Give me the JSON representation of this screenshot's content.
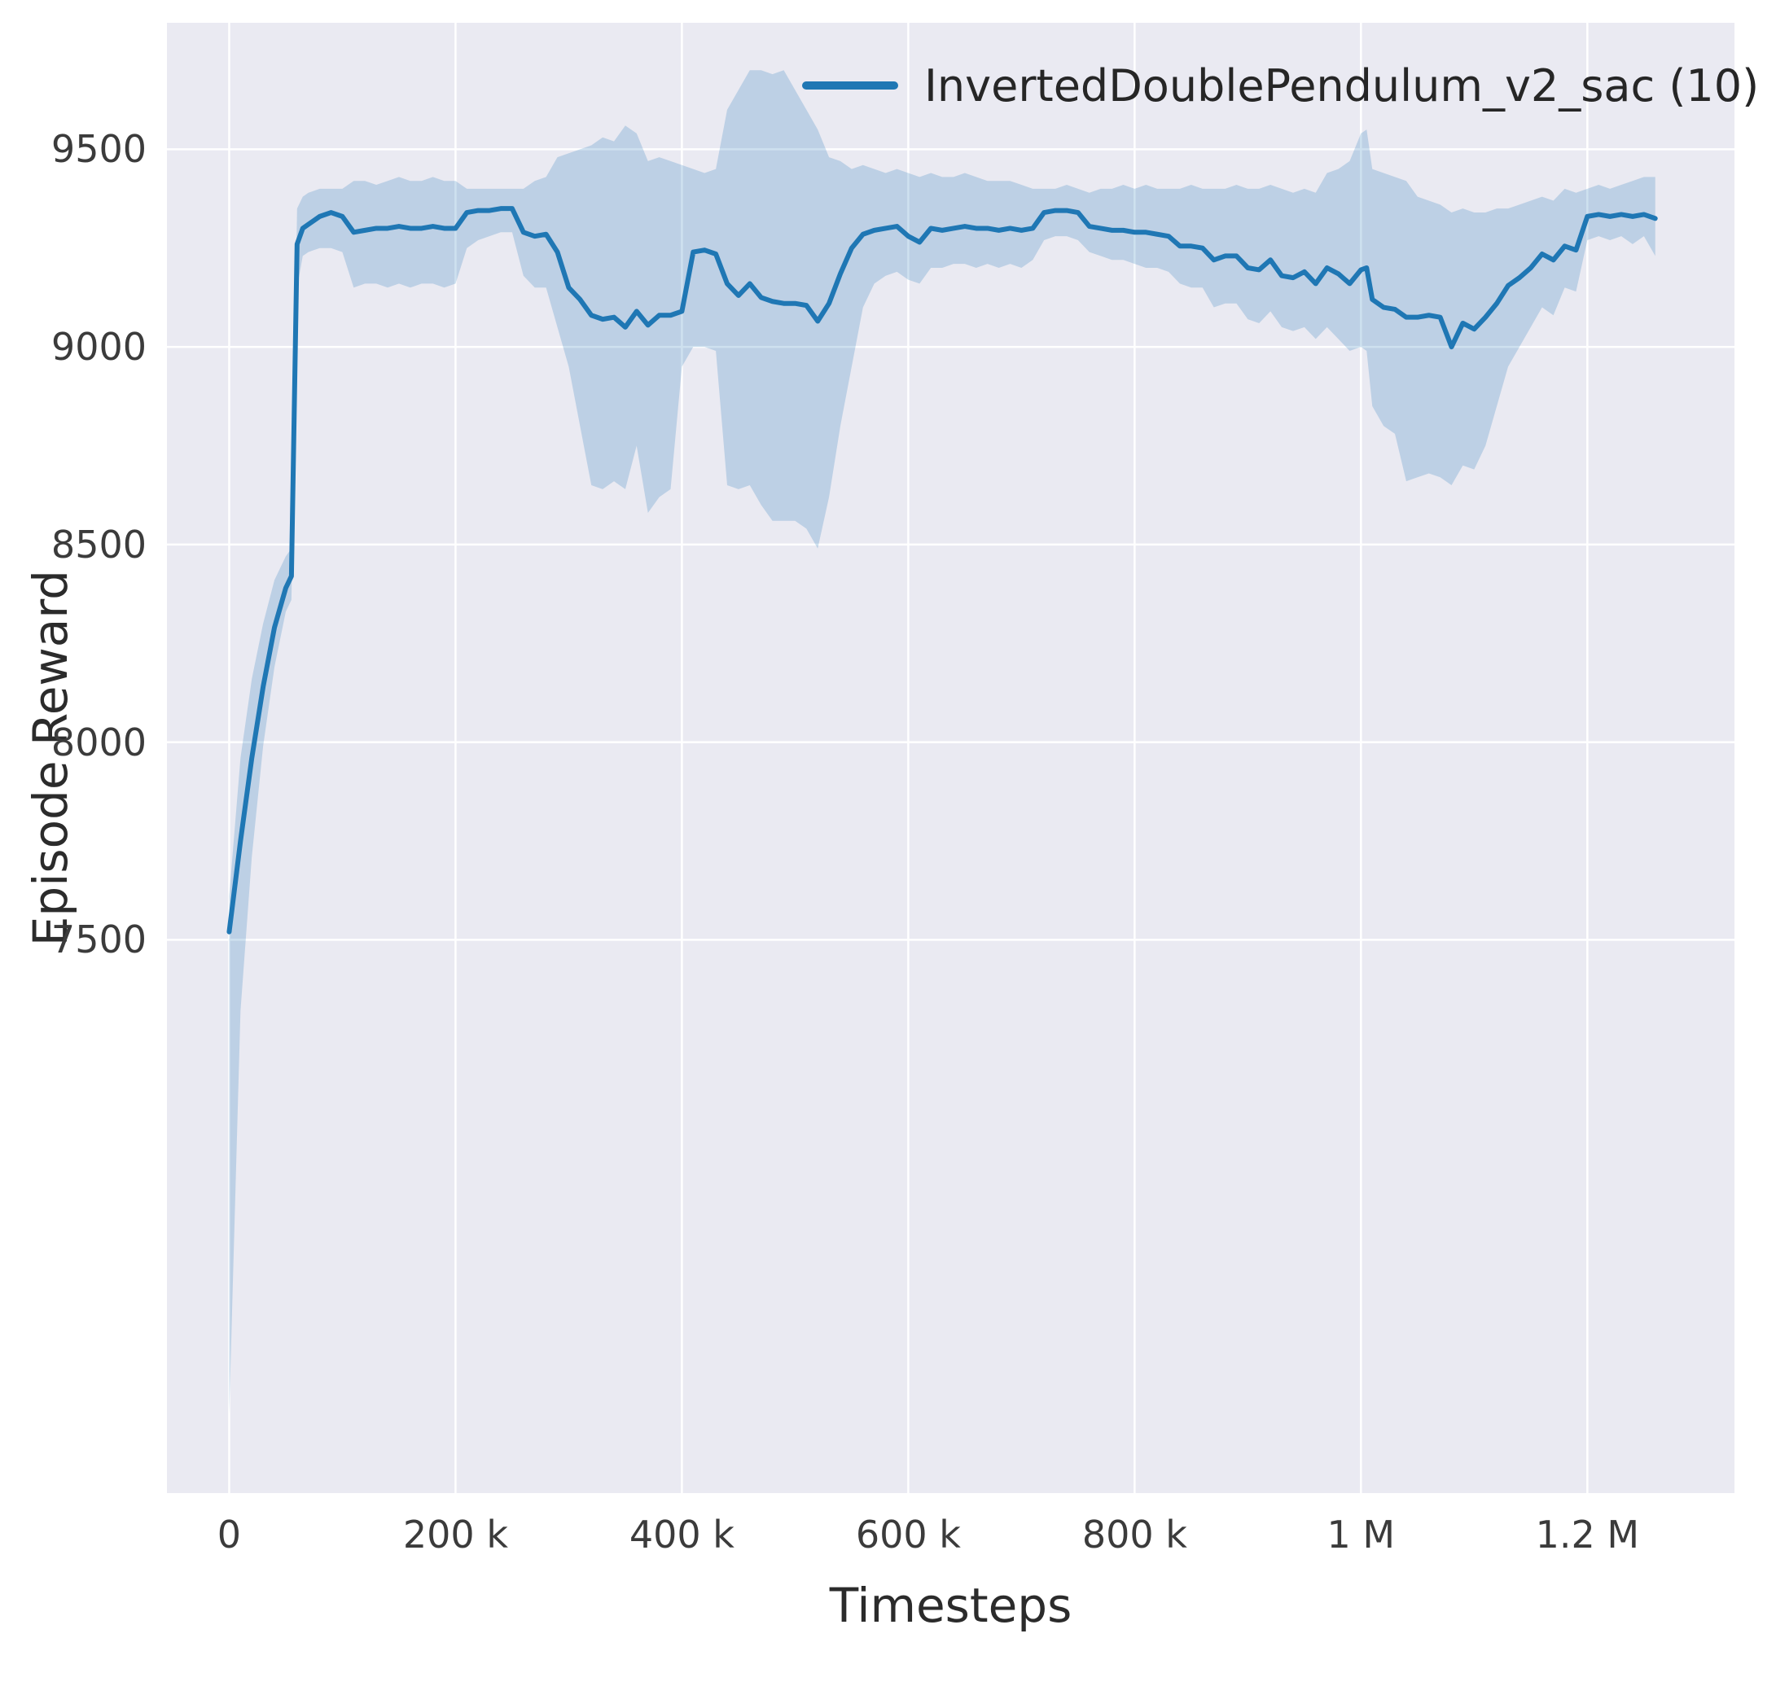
{
  "colors": {
    "plot_bg": "#eaeaf2",
    "grid": "#ffffff",
    "line": "#1f77b4",
    "text": "#3b3b3b"
  },
  "chart_data": {
    "type": "line",
    "title": "",
    "xlabel": "Timesteps",
    "ylabel": "Episode Reward",
    "xlim": [
      -55000,
      1330000
    ],
    "ylim": [
      6100,
      9820
    ],
    "grid": true,
    "legend_position": "upper center-right, frameless",
    "x_ticks": [
      {
        "value": 0,
        "label": "0"
      },
      {
        "value": 200000,
        "label": "200 k"
      },
      {
        "value": 400000,
        "label": "400 k"
      },
      {
        "value": 600000,
        "label": "600 k"
      },
      {
        "value": 800000,
        "label": "800 k"
      },
      {
        "value": 1000000,
        "label": "1 M"
      },
      {
        "value": 1200000,
        "label": "1.2 M"
      }
    ],
    "y_ticks": [
      {
        "value": 7500,
        "label": "7500"
      },
      {
        "value": 8000,
        "label": "8000"
      },
      {
        "value": 8500,
        "label": "8500"
      },
      {
        "value": 9000,
        "label": "9000"
      },
      {
        "value": 9500,
        "label": "9500"
      }
    ],
    "points_format": [
      "timesteps",
      "mean",
      "band_lower",
      "band_upper"
    ],
    "series": [
      {
        "name": "InvertedDoublePendulum_v2_sac (10)",
        "color": "#1f77b4",
        "band_opacity": 0.22,
        "points": [
          [
            0,
            7520,
            6300,
            7610
          ],
          [
            10000,
            7750,
            7320,
            7960
          ],
          [
            20000,
            7960,
            7710,
            8160
          ],
          [
            30000,
            8140,
            7990,
            8300
          ],
          [
            40000,
            8290,
            8190,
            8410
          ],
          [
            50000,
            8390,
            8330,
            8470
          ],
          [
            55000,
            8420,
            8360,
            8490
          ],
          [
            60000,
            9260,
            9150,
            9350
          ],
          [
            65000,
            9300,
            9230,
            9380
          ],
          [
            70000,
            9310,
            9240,
            9390
          ],
          [
            80000,
            9330,
            9250,
            9400
          ],
          [
            90000,
            9340,
            9250,
            9400
          ],
          [
            100000,
            9330,
            9240,
            9400
          ],
          [
            110000,
            9290,
            9150,
            9420
          ],
          [
            120000,
            9295,
            9160,
            9420
          ],
          [
            130000,
            9300,
            9160,
            9410
          ],
          [
            140000,
            9300,
            9150,
            9420
          ],
          [
            150000,
            9305,
            9160,
            9430
          ],
          [
            160000,
            9300,
            9150,
            9420
          ],
          [
            170000,
            9300,
            9160,
            9420
          ],
          [
            180000,
            9305,
            9160,
            9430
          ],
          [
            190000,
            9300,
            9150,
            9420
          ],
          [
            200000,
            9300,
            9160,
            9420
          ],
          [
            210000,
            9340,
            9250,
            9400
          ],
          [
            220000,
            9345,
            9270,
            9400
          ],
          [
            230000,
            9345,
            9280,
            9400
          ],
          [
            240000,
            9350,
            9290,
            9400
          ],
          [
            250000,
            9350,
            9290,
            9400
          ],
          [
            260000,
            9290,
            9180,
            9400
          ],
          [
            270000,
            9280,
            9150,
            9420
          ],
          [
            280000,
            9285,
            9150,
            9430
          ],
          [
            290000,
            9240,
            9050,
            9480
          ],
          [
            300000,
            9150,
            8950,
            9490
          ],
          [
            310000,
            9120,
            8800,
            9500
          ],
          [
            320000,
            9080,
            8650,
            9510
          ],
          [
            330000,
            9070,
            8640,
            9530
          ],
          [
            340000,
            9075,
            8660,
            9520
          ],
          [
            350000,
            9050,
            8640,
            9560
          ],
          [
            360000,
            9090,
            8750,
            9540
          ],
          [
            370000,
            9055,
            8580,
            9470
          ],
          [
            380000,
            9080,
            8620,
            9480
          ],
          [
            390000,
            9080,
            8640,
            9470
          ],
          [
            400000,
            9090,
            8950,
            9460
          ],
          [
            410000,
            9240,
            9000,
            9450
          ],
          [
            420000,
            9245,
            9000,
            9440
          ],
          [
            430000,
            9235,
            8990,
            9450
          ],
          [
            440000,
            9160,
            8650,
            9600
          ],
          [
            450000,
            9130,
            8640,
            9650
          ],
          [
            460000,
            9160,
            8650,
            9700
          ],
          [
            470000,
            9125,
            8600,
            9700
          ],
          [
            480000,
            9115,
            8560,
            9690
          ],
          [
            490000,
            9110,
            8560,
            9700
          ],
          [
            500000,
            9110,
            8560,
            9650
          ],
          [
            510000,
            9105,
            8540,
            9600
          ],
          [
            520000,
            9065,
            8490,
            9550
          ],
          [
            530000,
            9110,
            8620,
            9480
          ],
          [
            540000,
            9185,
            8800,
            9470
          ],
          [
            550000,
            9250,
            8950,
            9450
          ],
          [
            560000,
            9285,
            9100,
            9460
          ],
          [
            570000,
            9295,
            9160,
            9450
          ],
          [
            580000,
            9300,
            9180,
            9440
          ],
          [
            590000,
            9305,
            9190,
            9450
          ],
          [
            600000,
            9280,
            9170,
            9440
          ],
          [
            610000,
            9265,
            9160,
            9430
          ],
          [
            620000,
            9300,
            9200,
            9440
          ],
          [
            630000,
            9295,
            9200,
            9430
          ],
          [
            640000,
            9300,
            9210,
            9430
          ],
          [
            650000,
            9305,
            9210,
            9440
          ],
          [
            660000,
            9300,
            9200,
            9430
          ],
          [
            670000,
            9300,
            9210,
            9420
          ],
          [
            680000,
            9295,
            9200,
            9420
          ],
          [
            690000,
            9300,
            9210,
            9420
          ],
          [
            700000,
            9295,
            9200,
            9410
          ],
          [
            710000,
            9300,
            9220,
            9400
          ],
          [
            720000,
            9340,
            9270,
            9400
          ],
          [
            730000,
            9345,
            9280,
            9400
          ],
          [
            740000,
            9345,
            9280,
            9410
          ],
          [
            750000,
            9340,
            9270,
            9400
          ],
          [
            760000,
            9305,
            9240,
            9390
          ],
          [
            770000,
            9300,
            9230,
            9400
          ],
          [
            780000,
            9295,
            9220,
            9400
          ],
          [
            790000,
            9295,
            9220,
            9410
          ],
          [
            800000,
            9290,
            9210,
            9400
          ],
          [
            810000,
            9290,
            9200,
            9410
          ],
          [
            820000,
            9285,
            9200,
            9400
          ],
          [
            830000,
            9280,
            9190,
            9400
          ],
          [
            840000,
            9255,
            9160,
            9400
          ],
          [
            850000,
            9255,
            9150,
            9410
          ],
          [
            860000,
            9250,
            9150,
            9400
          ],
          [
            870000,
            9220,
            9100,
            9400
          ],
          [
            880000,
            9230,
            9110,
            9400
          ],
          [
            890000,
            9230,
            9110,
            9410
          ],
          [
            900000,
            9200,
            9070,
            9400
          ],
          [
            910000,
            9195,
            9060,
            9400
          ],
          [
            920000,
            9220,
            9090,
            9410
          ],
          [
            930000,
            9180,
            9050,
            9400
          ],
          [
            940000,
            9175,
            9040,
            9390
          ],
          [
            950000,
            9190,
            9050,
            9400
          ],
          [
            960000,
            9160,
            9020,
            9390
          ],
          [
            970000,
            9200,
            9050,
            9440
          ],
          [
            980000,
            9185,
            9020,
            9450
          ],
          [
            990000,
            9160,
            8990,
            9470
          ],
          [
            1000000,
            9195,
            9000,
            9540
          ],
          [
            1005000,
            9200,
            8990,
            9550
          ],
          [
            1010000,
            9120,
            8850,
            9450
          ],
          [
            1020000,
            9100,
            8800,
            9440
          ],
          [
            1030000,
            9095,
            8780,
            9430
          ],
          [
            1040000,
            9075,
            8660,
            9420
          ],
          [
            1050000,
            9075,
            8670,
            9380
          ],
          [
            1060000,
            9080,
            8680,
            9370
          ],
          [
            1070000,
            9075,
            8670,
            9360
          ],
          [
            1080000,
            9000,
            8650,
            9340
          ],
          [
            1090000,
            9060,
            8700,
            9350
          ],
          [
            1100000,
            9045,
            8690,
            9340
          ],
          [
            1110000,
            9075,
            8750,
            9340
          ],
          [
            1120000,
            9110,
            8850,
            9350
          ],
          [
            1130000,
            9155,
            8950,
            9350
          ],
          [
            1140000,
            9175,
            9000,
            9360
          ],
          [
            1150000,
            9200,
            9050,
            9370
          ],
          [
            1160000,
            9235,
            9100,
            9380
          ],
          [
            1170000,
            9220,
            9080,
            9370
          ],
          [
            1180000,
            9255,
            9150,
            9400
          ],
          [
            1190000,
            9245,
            9140,
            9390
          ],
          [
            1200000,
            9330,
            9270,
            9400
          ],
          [
            1210000,
            9335,
            9280,
            9410
          ],
          [
            1220000,
            9330,
            9270,
            9400
          ],
          [
            1230000,
            9335,
            9280,
            9410
          ],
          [
            1240000,
            9330,
            9260,
            9420
          ],
          [
            1250000,
            9335,
            9280,
            9430
          ],
          [
            1260000,
            9325,
            9230,
            9430
          ]
        ]
      }
    ]
  }
}
